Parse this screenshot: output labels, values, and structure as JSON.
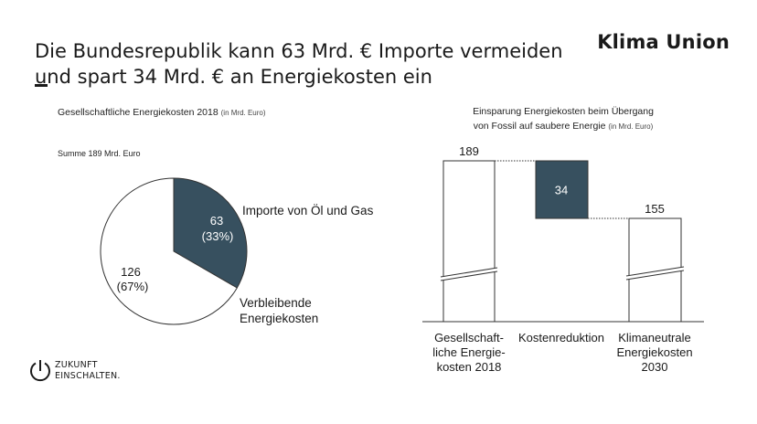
{
  "header": {
    "title_line1": "Die Bundesrepublik kann 63 Mrd. € Importe vermeiden",
    "title_line2": "und spart 34 Mrd. € an Energiekosten ein",
    "brand": "Klima Union"
  },
  "left_panel": {
    "subtitle": "Gesellschaftliche Energiekosten 2018",
    "subtitle_unit": "(in Mrd. Euro)",
    "sum_label": "Summe 189 Mrd. Euro"
  },
  "right_panel": {
    "subtitle_line1": "Einsparung Energiekosten beim Übergang",
    "subtitle_line2": "von Fossil auf saubere Energie",
    "subtitle_unit": "(in Mrd. Euro)"
  },
  "footer": {
    "logo_line1": "ZUKUNFT",
    "logo_line2": "EINSCHALTEN."
  },
  "colors": {
    "accent": "#37505f",
    "outline": "#333333",
    "background": "#ffffff"
  },
  "chart_data": [
    {
      "type": "pie",
      "title": "Gesellschaftliche Energiekosten 2018 (in Mrd. Euro)",
      "total_label": "Summe 189 Mrd. Euro",
      "slices": [
        {
          "name": "Importe von Öl und Gas",
          "value": 63,
          "value_label": "63",
          "percent_label": "(33%)",
          "color": "#37505f"
        },
        {
          "name": "Verbleibende Energiekosten",
          "value": 126,
          "value_label": "126",
          "percent_label": "(67%)",
          "color": "#ffffff"
        }
      ],
      "legend_placement": "labels beside slices"
    },
    {
      "type": "bar",
      "subtype": "waterfall",
      "title": "Einsparung Energiekosten beim Übergang von Fossil auf saubere Energie (in Mrd. Euro)",
      "categories": [
        "Gesellschaft-liche Energie-kosten 2018",
        "Kostenreduktion",
        "Klimaneutrale Energiekosten 2030"
      ],
      "category_lines": [
        [
          "Gesellschaft-",
          "liche Energie-",
          "kosten 2018"
        ],
        [
          "Kostenreduktion"
        ],
        [
          "Klimaneutrale",
          "Energiekosten",
          "2030"
        ]
      ],
      "values": [
        189,
        -34,
        155
      ],
      "value_labels": [
        "189",
        "34",
        "155"
      ],
      "axis_break": true,
      "ylim": [
        0,
        189
      ],
      "grid": false
    }
  ]
}
